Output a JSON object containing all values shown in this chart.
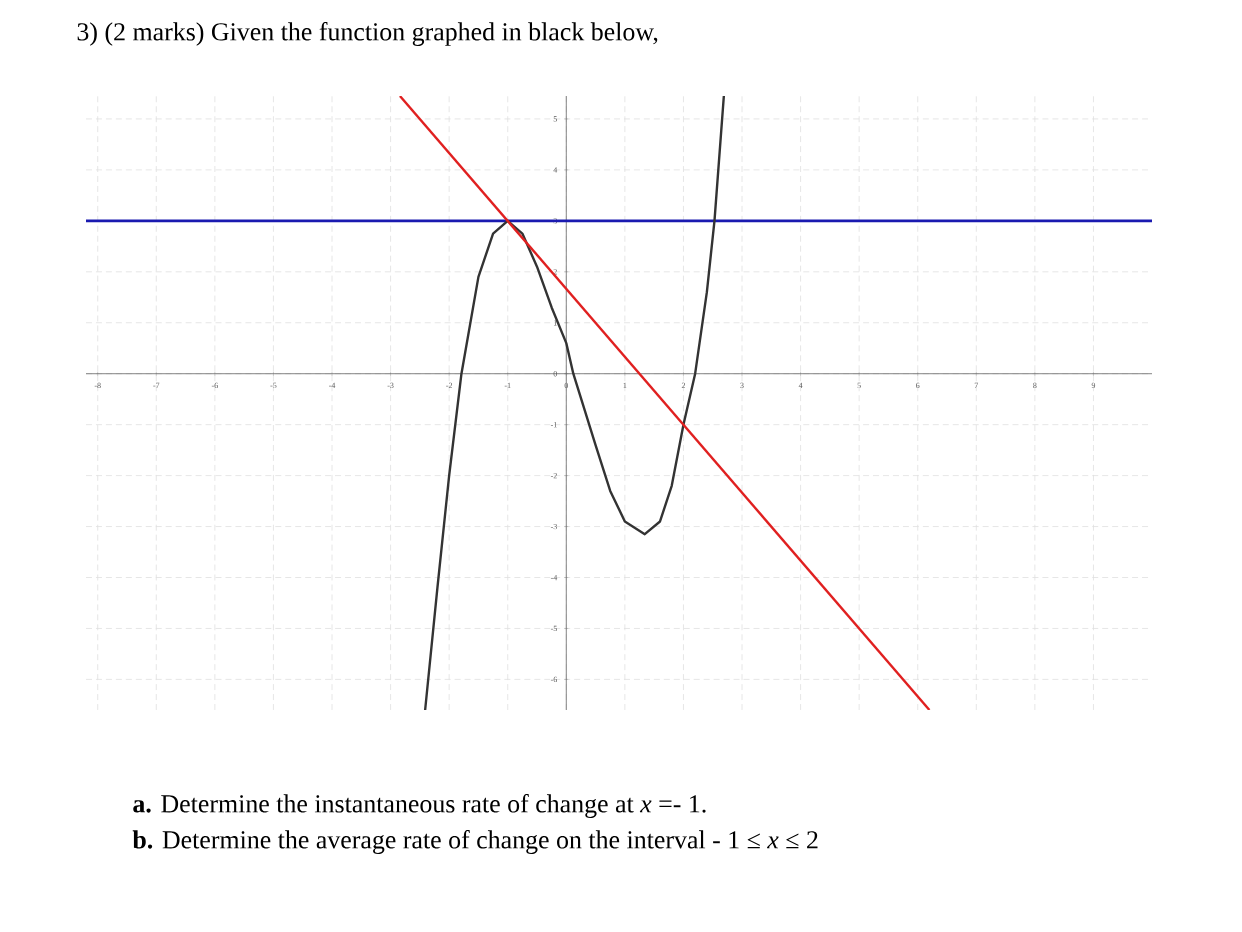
{
  "chart_data": {
    "type": "line",
    "title": "3)   (2 marks) Given the function graphed in black below,",
    "annotations": [
      "**a.**  Determine the instantaneous rate of change at  *x* =- 1.",
      "**b.**  Determine the average rate of change on the interval  - 1 ≤ *x* ≤ 2"
    ],
    "xlim": [
      -8.2,
      10
    ],
    "ylim": [
      -6.6,
      5.45
    ],
    "xticks": [
      -8,
      -7,
      -6,
      -5,
      -4,
      -3,
      -2,
      -1,
      0,
      1,
      2,
      3,
      4,
      5,
      6,
      7,
      8,
      9
    ],
    "yticks": [
      -6,
      -5,
      -4,
      -3,
      -2,
      -1,
      0,
      1,
      2,
      3,
      4,
      5
    ],
    "grid": true,
    "marker": "none",
    "series": [
      {
        "color": "#333333",
        "x": [
          -2.41,
          -2.2,
          -2,
          -1.79,
          -1.5,
          -1.25,
          -1,
          -0.75,
          -0.5,
          -0.25,
          0,
          0.12,
          0.5,
          0.75,
          1,
          1.34,
          1.6,
          1.8,
          2,
          2.2,
          2.4,
          2.53,
          2.69
        ],
        "values": [
          -6.6,
          -4.2,
          -2,
          0,
          1.9,
          2.75,
          3,
          2.75,
          2.1,
          1.3,
          0.6,
          0,
          -1.4,
          -2.3,
          -2.9,
          -3.15,
          -2.9,
          -2.2,
          -1,
          0,
          1.6,
          3,
          5.45
        ]
      },
      {
        "color": "#e02020",
        "x": [
          -2.84,
          6.2
        ],
        "values": [
          5.45,
          -6.6
        ]
      }
    ],
    "ref_lines": [
      {
        "axis": "y",
        "value": 3,
        "color": "#1a1ab0"
      }
    ]
  }
}
